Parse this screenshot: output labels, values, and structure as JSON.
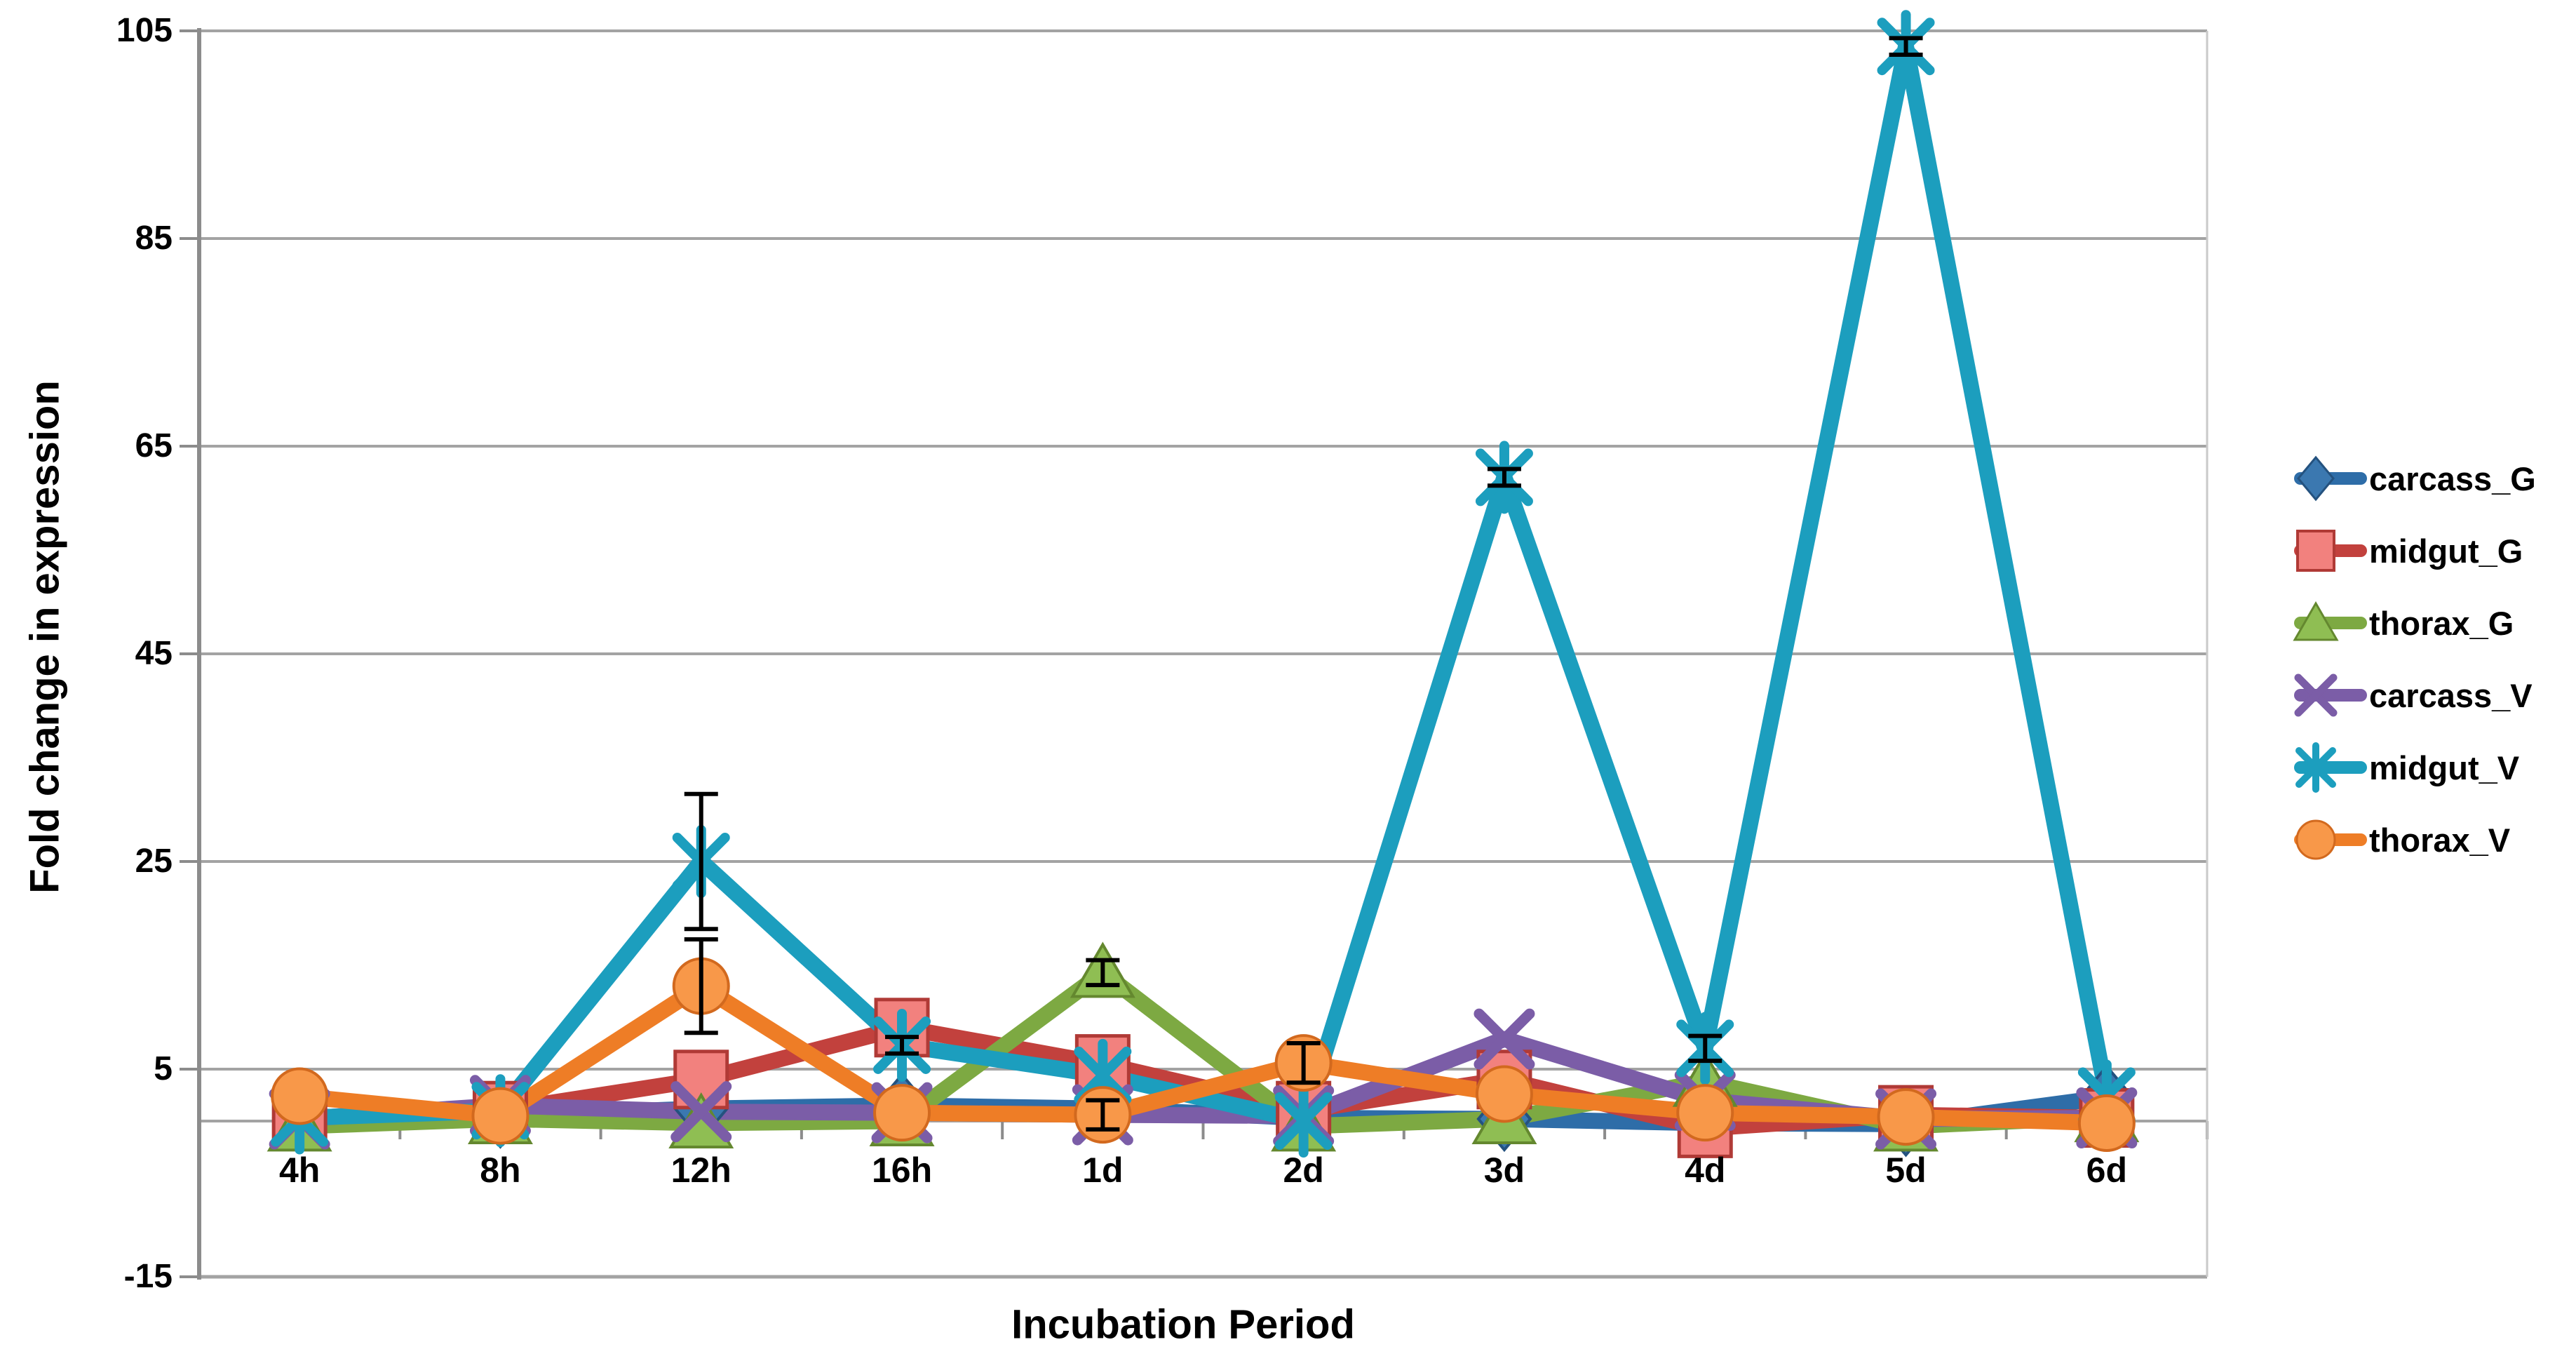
{
  "chart": {
    "y_axis_title": "Fold change in expression",
    "x_axis_title": "Incubation Period",
    "y_tick_labels": [
      "105",
      "85",
      "65",
      "45",
      "25",
      "5",
      "-15"
    ]
  },
  "chart_data": {
    "type": "line",
    "title": "",
    "xlabel": "Incubation Period",
    "ylabel": "Fold change in expression",
    "ylim": [
      -15,
      105
    ],
    "yticks": [
      105,
      85,
      65,
      45,
      25,
      5,
      -15
    ],
    "grid": "horizontal-major",
    "legend_position": "right",
    "categories": [
      "4h",
      "8h",
      "12h",
      "16h",
      "1d",
      "2d",
      "3d",
      "4d",
      "5d",
      "6d"
    ],
    "series": [
      {
        "name": "carcass_G",
        "marker": "diamond",
        "line_color": "#2E6DA8",
        "marker_fill": "#3B78B0",
        "marker_edge": "#24527F",
        "values": [
          0.3,
          0.5,
          1.2,
          1.5,
          1.2,
          0.3,
          0.2,
          -0.2,
          -0.3,
          2.3
        ]
      },
      {
        "name": "midgut_G",
        "marker": "square",
        "line_color": "#C2413D",
        "marker_fill": "#F2817E",
        "marker_edge": "#B03A36",
        "values": [
          0.3,
          1.0,
          4.0,
          9.0,
          5.5,
          1.0,
          4.0,
          -0.7,
          0.6,
          0.3
        ]
      },
      {
        "name": "thorax_G",
        "marker": "triangle",
        "line_color": "#7DA942",
        "marker_fill": "#8FBE53",
        "marker_edge": "#64882F",
        "values": [
          -0.5,
          0.2,
          -0.2,
          0.0,
          14.3,
          -0.5,
          0.2,
          3.8,
          -0.5,
          0.4
        ]
      },
      {
        "name": "carcass_V",
        "marker": "x",
        "line_color": "#7B5DA7",
        "marker_fill": "#7B5DA7",
        "marker_edge": "#7B5DA7",
        "values": [
          0.2,
          1.5,
          0.9,
          0.8,
          0.6,
          0.5,
          7.9,
          2.0,
          0.2,
          0.3
        ]
      },
      {
        "name": "midgut_V",
        "marker": "asterisk",
        "line_color": "#1C9EBE",
        "marker_fill": "#1C9EBE",
        "marker_edge": "#1C9EBE",
        "values": [
          0.3,
          1.0,
          25.0,
          7.3,
          4.4,
          0.0,
          62.0,
          7.0,
          103.5,
          2.4
        ]
      },
      {
        "name": "thorax_V",
        "marker": "circle",
        "line_color": "#EE7D26",
        "marker_fill": "#F89849",
        "marker_edge": "#D2691E",
        "values": [
          2.4,
          0.5,
          13.0,
          0.8,
          0.6,
          5.6,
          2.6,
          0.8,
          0.4,
          -0.2
        ]
      }
    ],
    "error_bars": [
      {
        "series": "midgut_V",
        "category": "12h",
        "plus": 6.5,
        "minus": 6.5
      },
      {
        "series": "thorax_V",
        "category": "12h",
        "plus": 4.5,
        "minus": 4.5
      },
      {
        "series": "midgut_V",
        "category": "16h",
        "plus": 0.8,
        "minus": 0.8
      },
      {
        "series": "thorax_G",
        "category": "1d",
        "plus": 1.2,
        "minus": 1.2
      },
      {
        "series": "thorax_V",
        "category": "1d",
        "plus": 1.4,
        "minus": 1.4
      },
      {
        "series": "thorax_V",
        "category": "2d",
        "plus": 1.9,
        "minus": 1.9
      },
      {
        "series": "midgut_V",
        "category": "3d",
        "plus": 0.8,
        "minus": 0.8
      },
      {
        "series": "midgut_V",
        "category": "4d",
        "plus": 1.2,
        "minus": 1.2
      },
      {
        "series": "midgut_V",
        "category": "5d",
        "plus": 0.8,
        "minus": 0.8
      }
    ],
    "colors": {
      "gridline": "#A3A3A3",
      "axis": "#8C8C8C",
      "error_bar": "#000000"
    }
  }
}
